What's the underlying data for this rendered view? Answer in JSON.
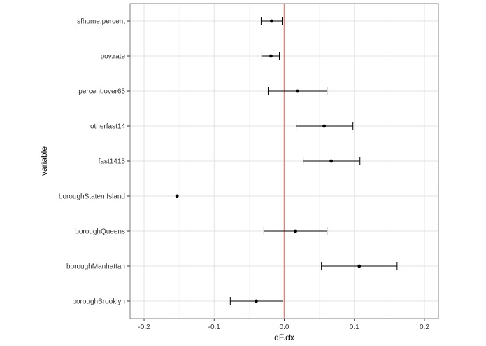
{
  "chart_data": {
    "type": "scatter",
    "subtype": "point-with-horizontal-error-bars",
    "title": "",
    "xlabel": "dF.dx",
    "ylabel": "variable",
    "xlim": [
      -0.22,
      0.22
    ],
    "x_ticks": [
      -0.2,
      -0.1,
      0.0,
      0.1,
      0.2
    ],
    "x_tick_labels": [
      "-0.2",
      "-0.1",
      "0.0",
      "0.1",
      "0.2"
    ],
    "reference_line": {
      "x": 0.0,
      "color": "#e8837c"
    },
    "grid": true,
    "legend": "none",
    "points": [
      {
        "variable": "sfhome.percent",
        "estimate": -0.018,
        "lower": -0.033,
        "upper": -0.003
      },
      {
        "variable": "pov.rate",
        "estimate": -0.019,
        "lower": -0.032,
        "upper": -0.007
      },
      {
        "variable": "percent.over65",
        "estimate": 0.019,
        "lower": -0.023,
        "upper": 0.061
      },
      {
        "variable": "otherfast14",
        "estimate": 0.057,
        "lower": 0.017,
        "upper": 0.098
      },
      {
        "variable": "fast1415",
        "estimate": 0.067,
        "lower": 0.027,
        "upper": 0.108
      },
      {
        "variable": "boroughStaten Island",
        "estimate": -0.153,
        "lower": null,
        "upper": null
      },
      {
        "variable": "boroughQueens",
        "estimate": 0.016,
        "lower": -0.029,
        "upper": 0.061
      },
      {
        "variable": "boroughManhattan",
        "estimate": 0.107,
        "lower": 0.053,
        "upper": 0.161
      },
      {
        "variable": "boroughBrooklyn",
        "estimate": -0.04,
        "lower": -0.077,
        "upper": -0.002
      }
    ]
  },
  "colors": {
    "panel_border": "#7f7f7f",
    "grid_major": "#e3e3e3",
    "grid_minor": "#f2f2f2",
    "point": "#000000",
    "errorbar": "#000000",
    "reference_line": "#e8837c"
  }
}
